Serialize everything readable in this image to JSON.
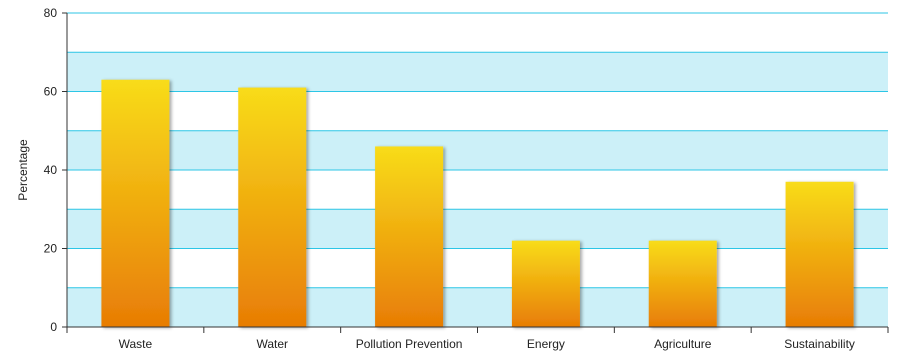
{
  "chart_data": {
    "type": "bar",
    "title": "",
    "xlabel": "",
    "ylabel": "Percentage",
    "categories": [
      "Waste",
      "Water",
      "Pollution Prevention",
      "Energy",
      "Agriculture",
      "Sustainability"
    ],
    "values": [
      63,
      61,
      46,
      22,
      22,
      37
    ],
    "ylim": [
      0,
      80
    ],
    "yticks": [
      0,
      20,
      40,
      60,
      80
    ],
    "grid": true,
    "legend": "none",
    "colors": {
      "bar_top": "#f8dc1a",
      "bar_bottom": "#e87c05",
      "band": "#ccf0f8",
      "gridline": "#2cc6e6",
      "axis": "#333333"
    }
  }
}
